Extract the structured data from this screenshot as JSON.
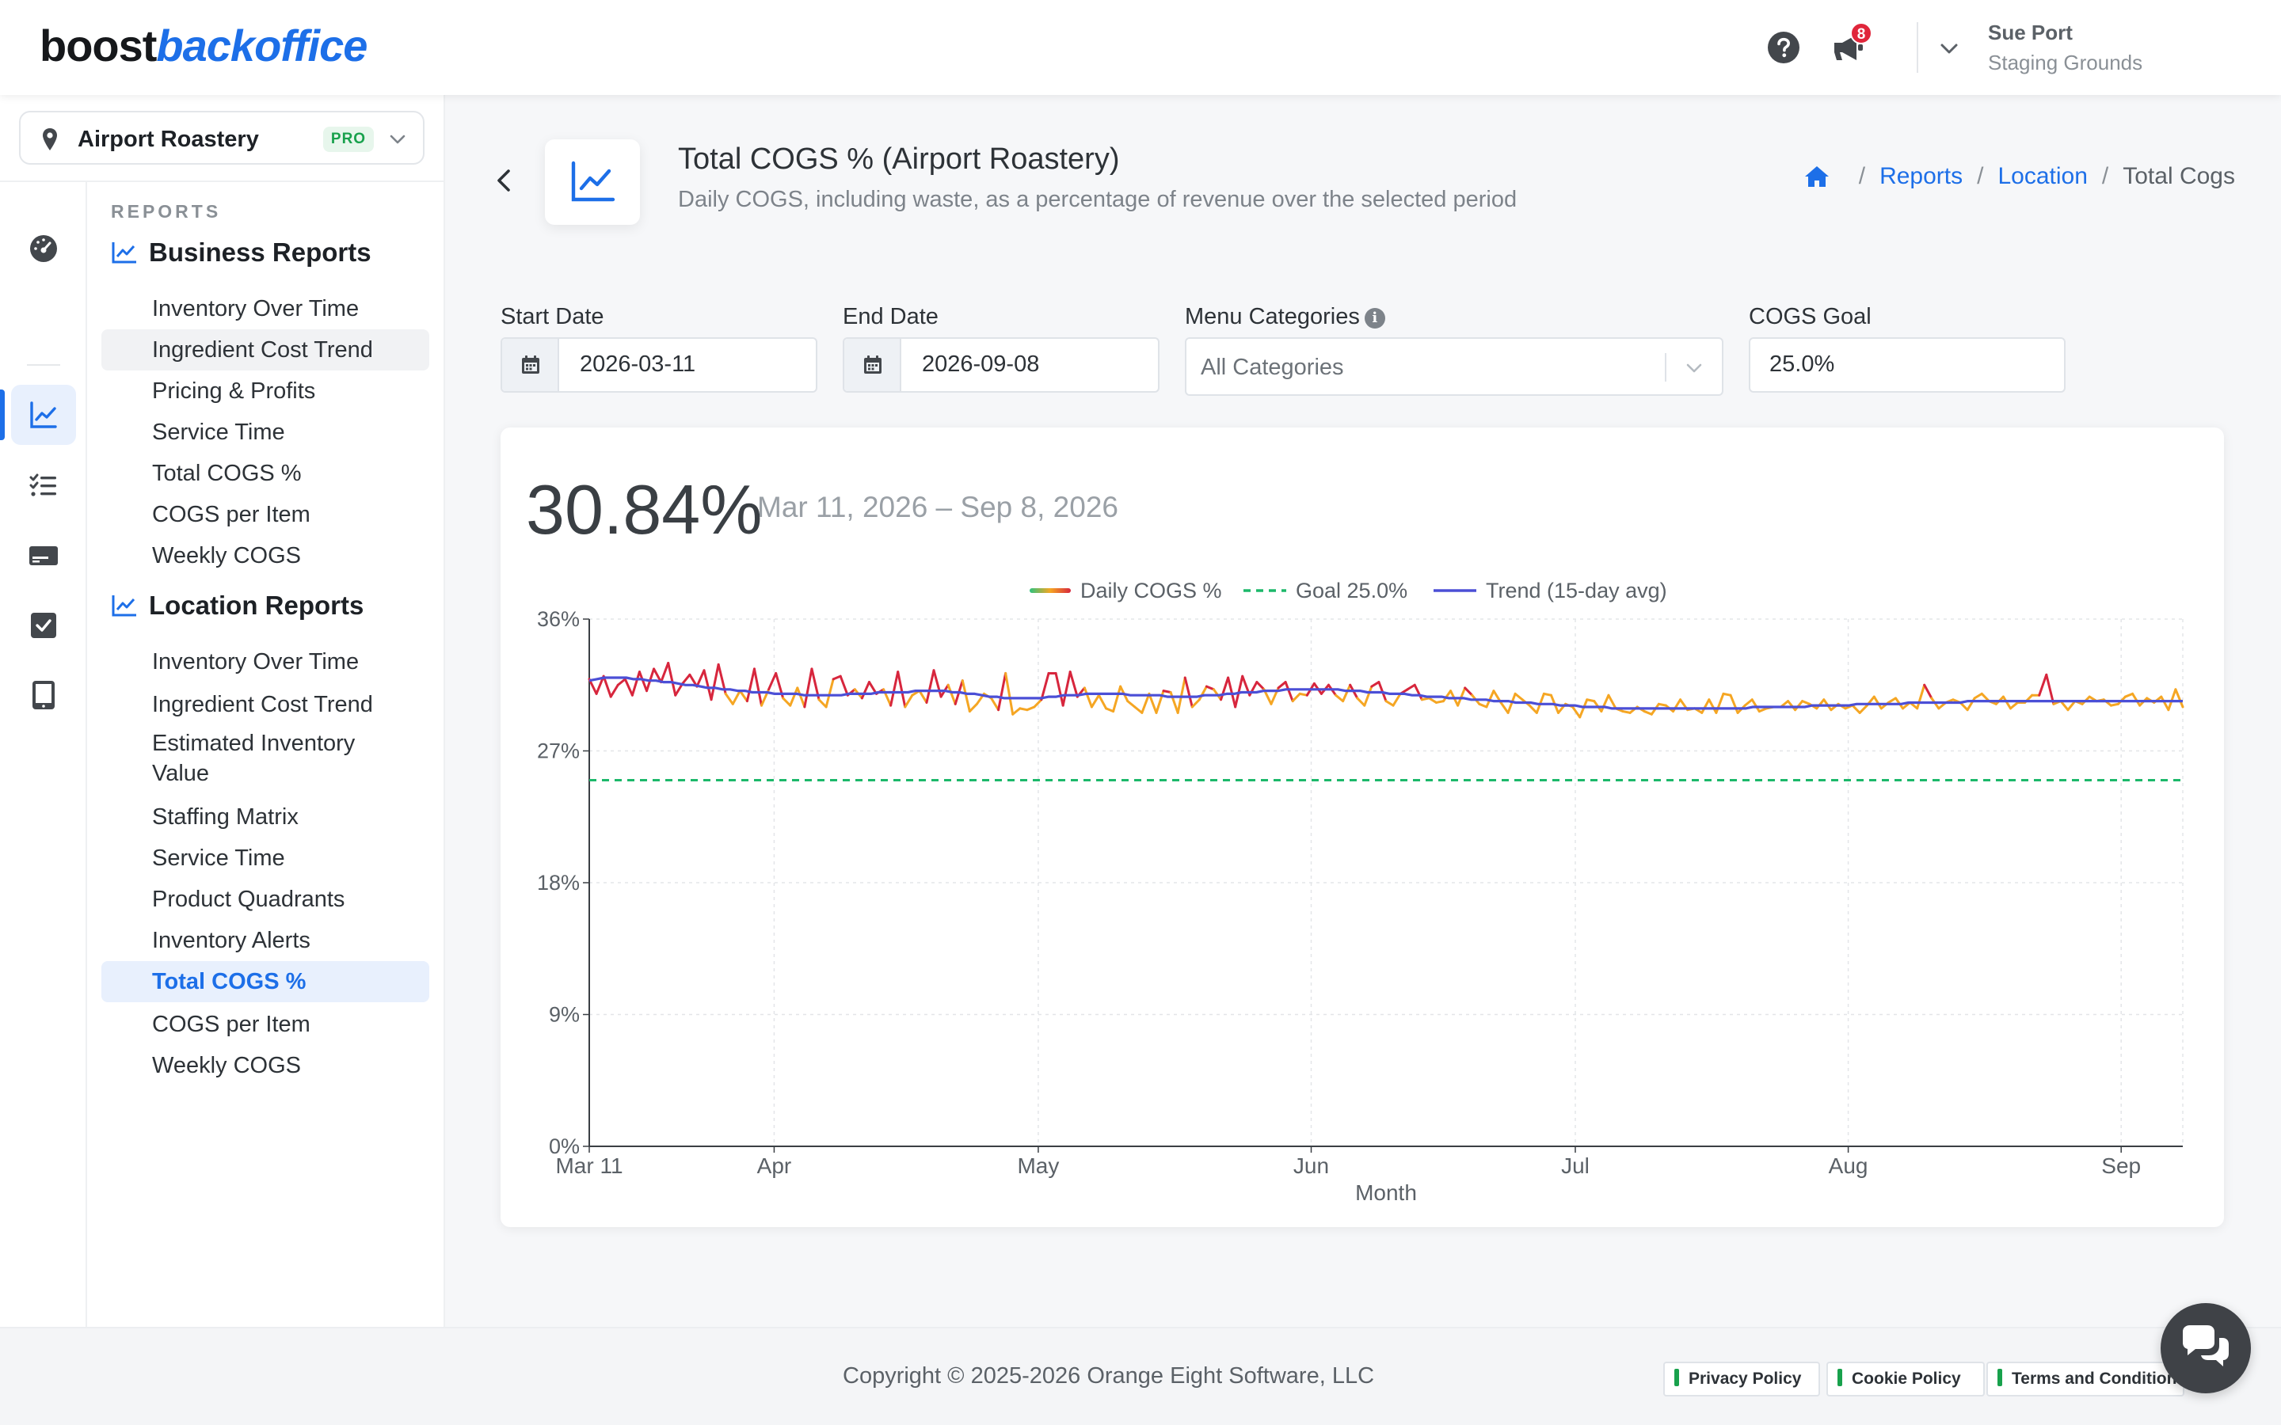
{
  "brand": {
    "part1": "boost",
    "part2": "backoffice"
  },
  "header": {
    "notification_count": "8",
    "user_name": "Sue Port",
    "user_org": "Staging Grounds"
  },
  "location_selector": {
    "name": "Airport Roastery",
    "badge": "PRO"
  },
  "sidebar": {
    "heading": "REPORTS",
    "business_title": "Business Reports",
    "business_items": [
      "Inventory Over Time",
      "Ingredient Cost Trend",
      "Pricing & Profits",
      "Service Time",
      "Total COGS %",
      "COGS per Item",
      "Weekly COGS"
    ],
    "location_title": "Location Reports",
    "location_items": [
      "Inventory Over Time",
      "Ingredient Cost Trend",
      "Estimated Inventory Value",
      "Staffing Matrix",
      "Service Time",
      "Product Quadrants",
      "Inventory Alerts",
      "Total COGS %",
      "COGS per Item",
      "Weekly COGS"
    ]
  },
  "page": {
    "title": "Total COGS % (Airport Roastery)",
    "subtitle": "Daily COGS, including waste, as a percentage of revenue over the selected period",
    "breadcrumbs": [
      "Reports",
      "Location",
      "Total Cogs"
    ]
  },
  "filters": {
    "start_label": "Start Date",
    "start_value": "2026-03-11",
    "end_label": "End Date",
    "end_value": "2026-09-08",
    "categories_label": "Menu Categories",
    "categories_value": "All Categories",
    "goal_label": "COGS Goal",
    "goal_value": "25.0%"
  },
  "summary": {
    "value": "30.84%",
    "range": "Mar 11, 2026 – Sep 8, 2026"
  },
  "chart_data": {
    "type": "line",
    "xlabel": "Month",
    "ylabel": "",
    "ylim": [
      0,
      36
    ],
    "yticks": [
      "0%",
      "9%",
      "18%",
      "27%",
      "36%"
    ],
    "xticks": [
      "Mar 11",
      "Apr",
      "May",
      "Jun",
      "Jul",
      "Aug",
      "Sep"
    ],
    "x_start": "2026-03-11",
    "x_end": "2026-09-08",
    "grid": true,
    "legend": "top-center",
    "goal": 25.0,
    "series": [
      {
        "name": "Daily COGS %",
        "color_low": "#f5a623",
        "color_high": "#d7263d",
        "values": [
          31.9,
          30.9,
          32.1,
          30.7,
          31.5,
          31.9,
          30.8,
          32.4,
          31.1,
          32.6,
          31.7,
          33.0,
          30.8,
          31.6,
          32.2,
          31.4,
          32.5,
          30.5,
          32.9,
          30.9,
          30.2,
          31.1,
          30.4,
          32.6,
          30.1,
          31.2,
          32.3,
          30.6,
          30.1,
          31.3,
          30.0,
          32.6,
          30.5,
          30.0,
          31.9,
          32.1,
          30.8,
          31.2,
          30.6,
          31.7,
          30.9,
          31.2,
          30.1,
          32.4,
          30.0,
          30.8,
          31.1,
          30.3,
          32.5,
          30.7,
          31.5,
          30.2,
          31.8,
          29.7,
          30.2,
          30.9,
          30.6,
          29.8,
          32.3,
          29.5,
          29.9,
          29.8,
          30.0,
          30.5,
          32.3,
          32.3,
          30.1,
          32.4,
          30.7,
          31.3,
          30.0,
          30.8,
          29.9,
          29.7,
          31.4,
          30.4,
          30.0,
          29.6,
          30.9,
          29.6,
          31.1,
          31.0,
          29.6,
          32.0,
          30.0,
          30.5,
          31.4,
          31.2,
          30.5,
          32.0,
          30.0,
          32.1,
          30.8,
          31.7,
          31.2,
          30.2,
          31.3,
          31.7,
          30.4,
          30.9,
          30.8,
          31.6,
          30.9,
          31.5,
          30.8,
          30.4,
          31.5,
          30.6,
          30.1,
          31.4,
          31.7,
          30.4,
          30.1,
          30.9,
          31.2,
          31.5,
          30.5,
          30.6,
          30.3,
          30.4,
          31.1,
          30.1,
          31.3,
          30.8,
          30.2,
          30.0,
          31.1,
          30.3,
          29.6,
          30.9,
          30.5,
          30.1,
          29.6,
          30.9,
          30.8,
          29.6,
          30.2,
          30.0,
          29.3,
          30.5,
          30.4,
          29.7,
          30.8,
          29.9,
          29.7,
          29.6,
          30.0,
          29.7,
          29.5,
          30.2,
          30.1,
          29.7,
          30.5,
          29.8,
          29.9,
          29.6,
          30.5,
          29.6,
          30.9,
          30.8,
          29.6,
          30.1,
          30.5,
          29.7,
          29.9,
          30.0,
          30.0,
          30.4,
          29.8,
          30.4,
          30.2,
          29.9,
          30.5,
          29.8,
          30.2,
          29.9,
          30.1,
          29.6,
          30.1,
          30.7,
          29.9,
          30.3,
          30.6,
          29.9,
          30.3,
          29.9,
          31.5,
          30.6,
          29.9,
          30.3,
          30.5,
          30.3,
          29.8,
          30.6,
          30.9,
          30.4,
          30.2,
          30.7,
          29.9,
          30.3,
          30.3,
          30.8,
          30.8,
          32.2,
          30.2,
          30.4,
          29.8,
          30.4,
          30.2,
          30.7,
          30.4,
          30.5,
          30.1,
          30.2,
          30.7,
          30.9,
          30.1,
          30.6,
          30.3,
          30.7,
          29.8,
          31.2,
          30.0
        ]
      },
      {
        "name": "Goal 25.0%",
        "color": "#1cb86a",
        "values": [
          25.0
        ]
      },
      {
        "name": "Trend (15-day avg)",
        "color": "#4b4fd6",
        "values": [
          31.8,
          31.9,
          32.0,
          32.0,
          32.0,
          32.0,
          31.9,
          31.9,
          31.8,
          31.8,
          31.7,
          31.7,
          31.6,
          31.5,
          31.5,
          31.4,
          31.3,
          31.3,
          31.2,
          31.2,
          31.1,
          31.1,
          31.0,
          31.0,
          31.0,
          30.9,
          30.9,
          30.9,
          30.9,
          30.8,
          30.8,
          30.8,
          30.8,
          30.8,
          30.8,
          30.9,
          30.9,
          30.9,
          30.9,
          31.0,
          31.0,
          31.0,
          31.0,
          31.0,
          31.1,
          31.1,
          31.1,
          31.1,
          31.1,
          31.0,
          31.0,
          30.9,
          30.9,
          30.8,
          30.7,
          30.7,
          30.6,
          30.6,
          30.6,
          30.6,
          30.6,
          30.6,
          30.7,
          30.7,
          30.8,
          30.8,
          30.8,
          30.9,
          30.9,
          30.9,
          30.9,
          30.9,
          30.9,
          30.8,
          30.8,
          30.8,
          30.8,
          30.8,
          30.7,
          30.7,
          30.7,
          30.7,
          30.7,
          30.8,
          30.8,
          30.8,
          30.9,
          30.9,
          31.0,
          31.0,
          31.0,
          31.1,
          31.1,
          31.1,
          31.2,
          31.2,
          31.2,
          31.2,
          31.2,
          31.2,
          31.2,
          31.2,
          31.1,
          31.1,
          31.1,
          31.0,
          31.0,
          31.0,
          30.9,
          30.9,
          30.9,
          30.8,
          30.8,
          30.7,
          30.7,
          30.7,
          30.6,
          30.6,
          30.6,
          30.5,
          30.5,
          30.5,
          30.4,
          30.4,
          30.4,
          30.3,
          30.3,
          30.3,
          30.2,
          30.2,
          30.2,
          30.1,
          30.1,
          30.1,
          30.0,
          30.0,
          30.0,
          30.0,
          29.9,
          29.9,
          29.9,
          29.9,
          29.9,
          29.9,
          29.9,
          29.9,
          29.9,
          29.9,
          29.9,
          29.9,
          29.9,
          29.9,
          29.9,
          29.9,
          29.9,
          29.9,
          29.9,
          30.0,
          30.0,
          30.0,
          30.0,
          30.0,
          30.0,
          30.0,
          30.0,
          30.1,
          30.1,
          30.1,
          30.1,
          30.1,
          30.1,
          30.2,
          30.2,
          30.2,
          30.2,
          30.2,
          30.2,
          30.2,
          30.3,
          30.3,
          30.3,
          30.3,
          30.3,
          30.3,
          30.3,
          30.3,
          30.4,
          30.4,
          30.4,
          30.4,
          30.4,
          30.4,
          30.4,
          30.4,
          30.4,
          30.4,
          30.4,
          30.4,
          30.4,
          30.4,
          30.4,
          30.4,
          30.4,
          30.4,
          30.4,
          30.4,
          30.4,
          30.4,
          30.4,
          30.4,
          30.4,
          30.4,
          30.4,
          30.4,
          30.4,
          30.4
        ]
      }
    ]
  },
  "footer": {
    "copyright": "Copyright © 2025-2026 Orange Eight Software, LLC",
    "links": [
      "Privacy Policy",
      "Cookie Policy",
      "Terms and Conditions"
    ]
  }
}
